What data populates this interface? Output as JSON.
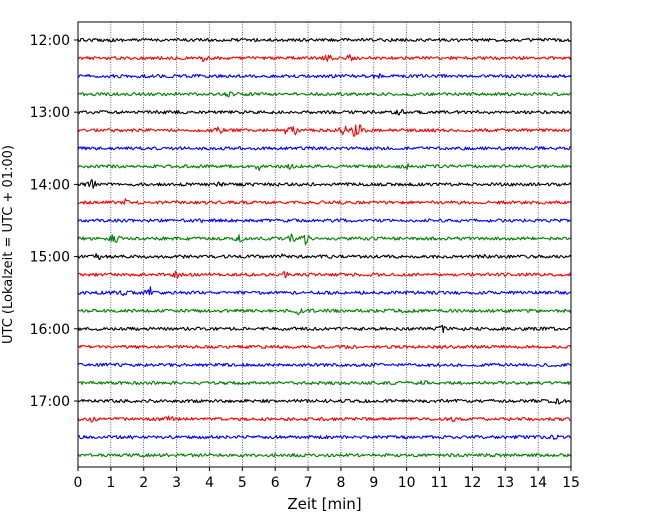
{
  "chart_data": {
    "type": "line",
    "subtype": "helicorder",
    "title": "",
    "xlabel": "Zeit  [min]",
    "ylabel": "UTC (Lokalzeit = UTC + 01:00)",
    "xlim": [
      0,
      15
    ],
    "x_ticks": [
      0,
      1,
      2,
      3,
      4,
      5,
      6,
      7,
      8,
      9,
      10,
      11,
      12,
      13,
      14,
      15
    ],
    "x_tick_labels": [
      "0",
      "1",
      "2",
      "3",
      "4",
      "5",
      "6",
      "7",
      "8",
      "9",
      "10",
      "11",
      "12",
      "13",
      "14",
      "15"
    ],
    "y_tick_labels": [
      "12:00",
      "13:00",
      "14:00",
      "15:00",
      "16:00",
      "17:00"
    ],
    "minutes_per_trace": 15,
    "vertical_grid": "dotted",
    "colors": [
      "#000000",
      "#ff0000",
      "#0000ff",
      "#008000"
    ],
    "traces": [
      {
        "start": "12:00",
        "color": "#000000",
        "events": []
      },
      {
        "start": "12:15",
        "color": "#ff0000",
        "events": [
          [
            3.8,
            2.5
          ],
          [
            7.6,
            3.5
          ],
          [
            8.3,
            3.5
          ]
        ]
      },
      {
        "start": "12:30",
        "color": "#0000ff",
        "events": [
          [
            9.1,
            3.5
          ]
        ]
      },
      {
        "start": "12:45",
        "color": "#008000",
        "events": [
          [
            4.6,
            2
          ]
        ]
      },
      {
        "start": "13:00",
        "color": "#000000",
        "events": [
          [
            9.8,
            3
          ]
        ]
      },
      {
        "start": "13:15",
        "color": "#ff0000",
        "events": [
          [
            4.3,
            4
          ],
          [
            6.3,
            4
          ],
          [
            6.6,
            5
          ],
          [
            8.1,
            6
          ],
          [
            8.4,
            6
          ],
          [
            8.6,
            5
          ]
        ]
      },
      {
        "start": "13:30",
        "color": "#0000ff",
        "events": []
      },
      {
        "start": "13:45",
        "color": "#008000",
        "events": [
          [
            5.5,
            3
          ],
          [
            6.4,
            3
          ],
          [
            10,
            2.5
          ]
        ]
      },
      {
        "start": "14:00",
        "color": "#000000",
        "events": [
          [
            0.45,
            6
          ],
          [
            4.3,
            2
          ]
        ]
      },
      {
        "start": "14:15",
        "color": "#ff0000",
        "events": [
          [
            1.4,
            4
          ]
        ]
      },
      {
        "start": "14:30",
        "color": "#0000ff",
        "events": [
          [
            3.7,
            2
          ]
        ]
      },
      {
        "start": "14:45",
        "color": "#008000",
        "events": [
          [
            1.1,
            6
          ],
          [
            4.9,
            3
          ],
          [
            6.5,
            5
          ],
          [
            6.9,
            6
          ]
        ]
      },
      {
        "start": "15:00",
        "color": "#000000",
        "events": [
          [
            0.6,
            3
          ],
          [
            6.2,
            2
          ],
          [
            12.3,
            2
          ]
        ]
      },
      {
        "start": "15:15",
        "color": "#ff0000",
        "events": [
          [
            3.0,
            3.5
          ],
          [
            6.3,
            3
          ]
        ]
      },
      {
        "start": "15:30",
        "color": "#0000ff",
        "events": [
          [
            1.3,
            4
          ],
          [
            2.2,
            5
          ]
        ]
      },
      {
        "start": "15:45",
        "color": "#008000",
        "events": [
          [
            6.7,
            3
          ],
          [
            10,
            2
          ]
        ]
      },
      {
        "start": "16:00",
        "color": "#000000",
        "events": [
          [
            10.2,
            2.5
          ],
          [
            11.1,
            3
          ]
        ]
      },
      {
        "start": "16:15",
        "color": "#ff0000",
        "events": [
          [
            8.5,
            2
          ]
        ]
      },
      {
        "start": "16:30",
        "color": "#0000ff",
        "events": []
      },
      {
        "start": "16:45",
        "color": "#008000",
        "events": [
          [
            10.5,
            2
          ]
        ]
      },
      {
        "start": "17:00",
        "color": "#000000",
        "events": [
          [
            14.6,
            3
          ]
        ]
      },
      {
        "start": "17:15",
        "color": "#ff0000",
        "events": [
          [
            0.4,
            3
          ],
          [
            2.8,
            3
          ],
          [
            11.4,
            2
          ]
        ]
      },
      {
        "start": "17:30",
        "color": "#0000ff",
        "events": [
          [
            1.6,
            3
          ],
          [
            14.5,
            2.5
          ]
        ]
      },
      {
        "start": "17:45",
        "color": "#008000",
        "events": []
      }
    ]
  }
}
